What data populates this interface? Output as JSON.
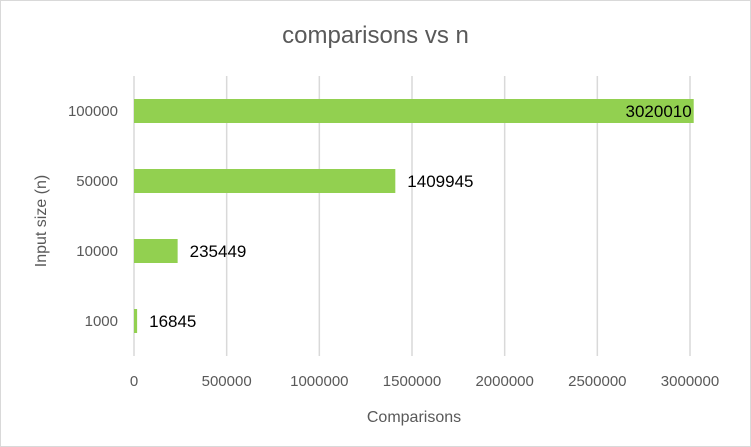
{
  "chart_data": {
    "type": "bar",
    "orientation": "horizontal",
    "title": "comparisons vs n",
    "xlabel": "Comparisons",
    "ylabel": "Input size (n)",
    "categories": [
      "100000",
      "50000",
      "10000",
      "1000"
    ],
    "values": [
      3020010,
      1409945,
      235449,
      16845
    ],
    "xlim": [
      0,
      3000000
    ],
    "x_ticks": [
      0,
      500000,
      1000000,
      1500000,
      2000000,
      2500000,
      3000000
    ],
    "x_tick_labels": [
      "0",
      "500000",
      "1000000",
      "1500000",
      "2000000",
      "2500000",
      "3000000"
    ],
    "data_labels": [
      "3020010",
      "1409945",
      "235449",
      "16845"
    ],
    "grid": "vertical",
    "legend": "none",
    "colors": {
      "bar": "#92d050",
      "grid": "#d9d9d9",
      "axis_text": "#595959",
      "data_label": "#000000",
      "border": "#d9d9d9"
    }
  }
}
